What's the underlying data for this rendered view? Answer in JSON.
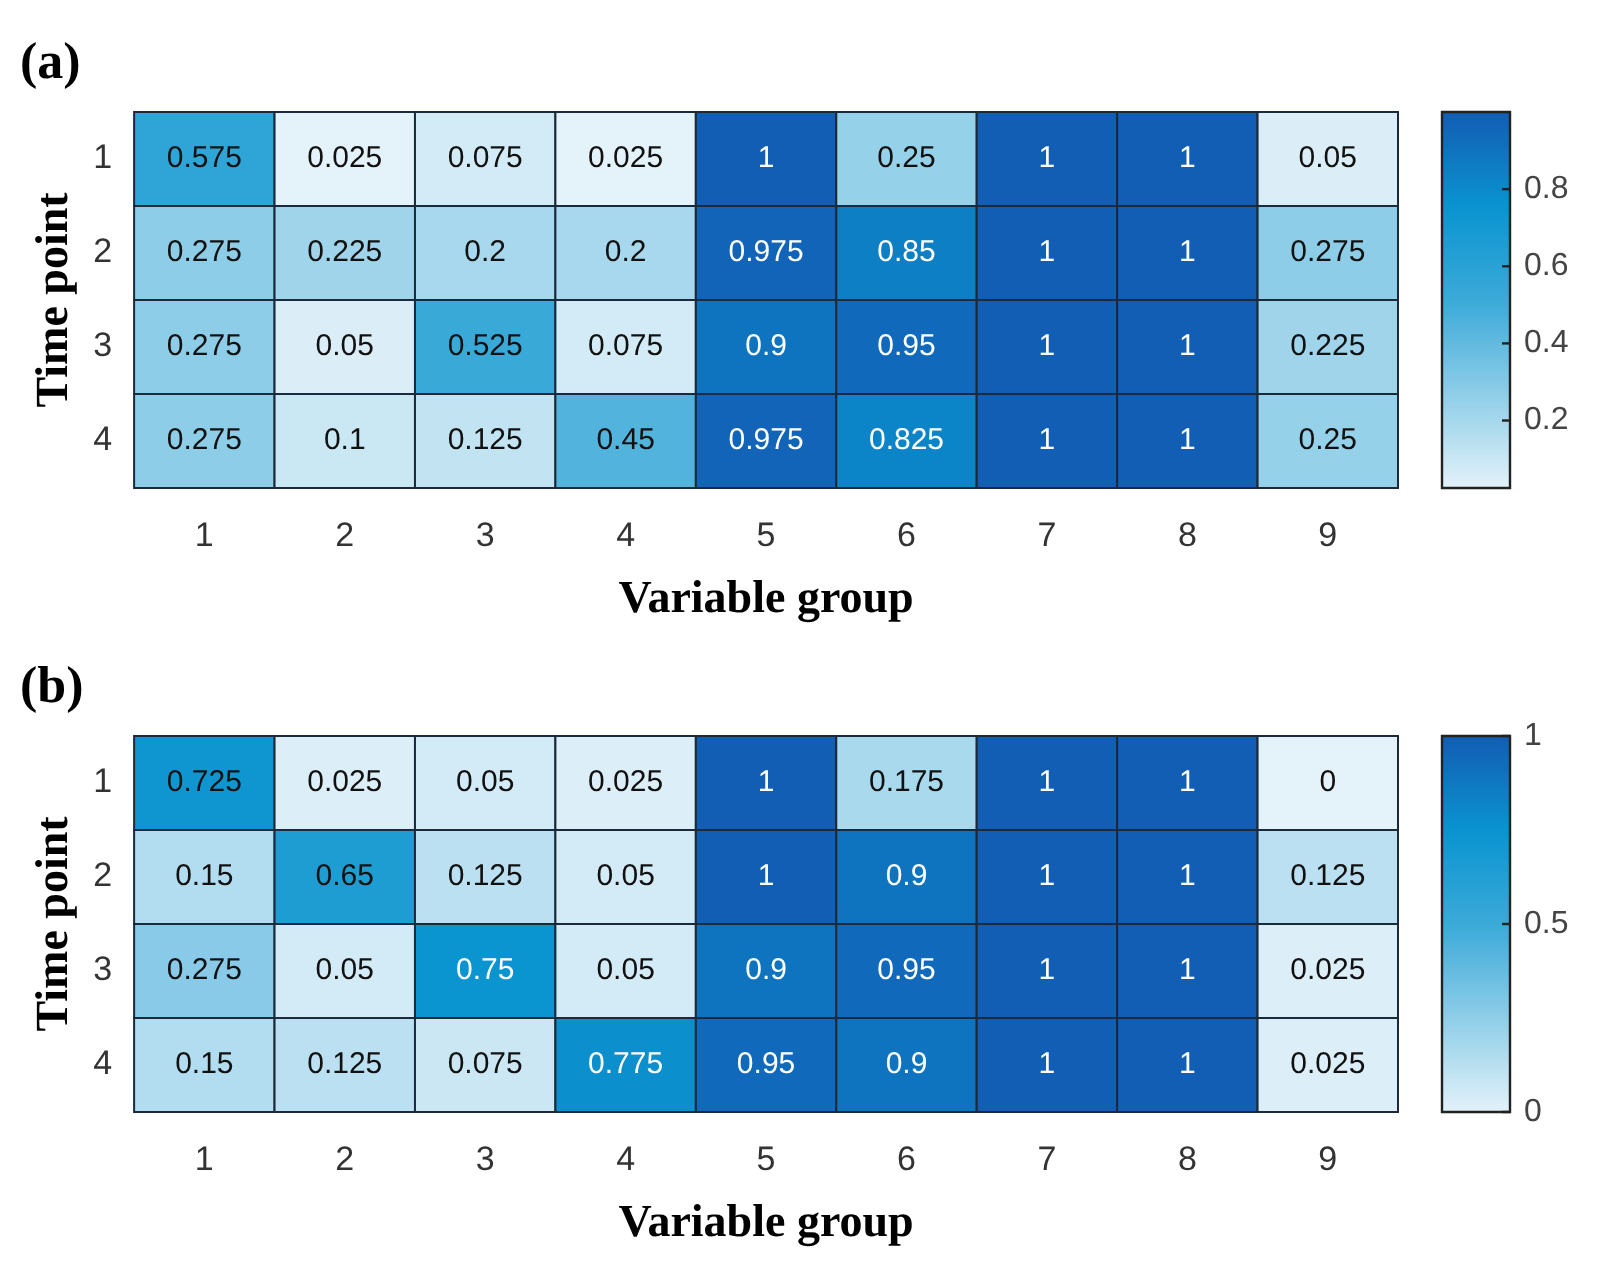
{
  "chart_data": [
    {
      "type": "heatmap",
      "title": "(a)",
      "xlabel": "Variable group",
      "ylabel": "Time point",
      "categories": [
        "1",
        "2",
        "3",
        "4",
        "5",
        "6",
        "7",
        "8",
        "9"
      ],
      "y_categories": [
        "1",
        "2",
        "3",
        "4"
      ],
      "cells": [
        [
          0.575,
          0.025,
          0.075,
          0.025,
          1,
          0.25,
          1,
          1,
          0.05
        ],
        [
          0.275,
          0.225,
          0.2,
          0.2,
          0.975,
          0.85,
          1,
          1,
          0.275
        ],
        [
          0.275,
          0.05,
          0.525,
          0.075,
          0.9,
          0.95,
          1,
          1,
          0.225
        ],
        [
          0.275,
          0.1,
          0.125,
          0.45,
          0.975,
          0.825,
          1,
          1,
          0.25
        ]
      ],
      "clim": [
        0.025,
        1
      ],
      "cticks": [
        0.2,
        0.4,
        0.6,
        0.8
      ],
      "data_labels": true
    },
    {
      "type": "heatmap",
      "title": "(b)",
      "xlabel": "Variable group",
      "ylabel": "Time point",
      "categories": [
        "1",
        "2",
        "3",
        "4",
        "5",
        "6",
        "7",
        "8",
        "9"
      ],
      "y_categories": [
        "1",
        "2",
        "3",
        "4"
      ],
      "cells": [
        [
          0.725,
          0.025,
          0.05,
          0.025,
          1,
          0.175,
          1,
          1,
          0
        ],
        [
          0.15,
          0.65,
          0.125,
          0.05,
          1,
          0.9,
          1,
          1,
          0.125
        ],
        [
          0.275,
          0.05,
          0.75,
          0.05,
          0.9,
          0.95,
          1,
          1,
          0.025
        ],
        [
          0.15,
          0.125,
          0.075,
          0.775,
          0.95,
          0.9,
          1,
          1,
          0.025
        ]
      ],
      "clim": [
        0,
        1
      ],
      "cticks": [
        0,
        0.5,
        1
      ],
      "data_labels": true
    }
  ]
}
